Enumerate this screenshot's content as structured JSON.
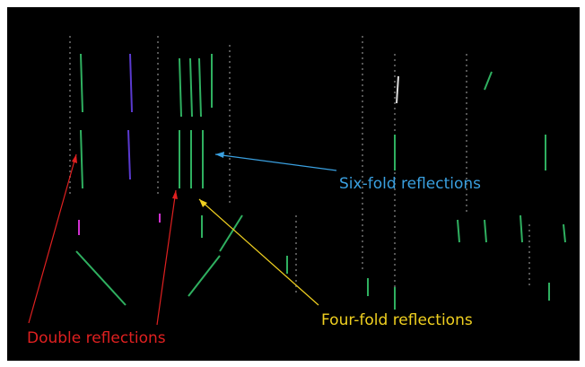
{
  "annotations": {
    "six_fold": "Six-fold reflections",
    "four_fold": "Four-fold reflections",
    "double": "Double reflections"
  }
}
